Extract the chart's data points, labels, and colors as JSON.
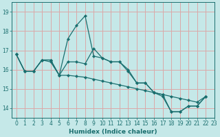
{
  "xlabel": "Humidex (Indice chaleur)",
  "ylabel": "",
  "bg_color": "#c5e8e8",
  "grid_color": "#dba8a8",
  "line_color": "#1a6e6e",
  "xlim": [
    -0.5,
    23
  ],
  "ylim": [
    13.5,
    19.5
  ],
  "yticks": [
    14,
    15,
    16,
    17,
    18,
    19
  ],
  "xticks": [
    0,
    1,
    2,
    3,
    4,
    5,
    6,
    7,
    8,
    9,
    10,
    11,
    12,
    13,
    14,
    15,
    16,
    17,
    18,
    19,
    20,
    21,
    22,
    23
  ],
  "series1_x": [
    0,
    1,
    2,
    3,
    4,
    5,
    6,
    7,
    8,
    9,
    10,
    11,
    12,
    13,
    14,
    15,
    16,
    17,
    18,
    19,
    20,
    21,
    22
  ],
  "series1_y": [
    16.8,
    15.9,
    15.9,
    16.5,
    16.5,
    15.7,
    17.6,
    18.3,
    18.8,
    16.7,
    16.6,
    16.4,
    16.4,
    15.9,
    15.3,
    15.3,
    14.8,
    14.6,
    13.8,
    13.8,
    14.1,
    14.1,
    14.6
  ],
  "series2_x": [
    0,
    1,
    2,
    3,
    4,
    5,
    6,
    7,
    8,
    9,
    10,
    11,
    12,
    13,
    14,
    15,
    16,
    17,
    18,
    19,
    20,
    21,
    22
  ],
  "series2_y": [
    16.8,
    15.9,
    15.9,
    16.5,
    16.5,
    15.7,
    16.4,
    16.4,
    16.3,
    17.1,
    16.6,
    16.4,
    16.4,
    16.0,
    15.3,
    15.3,
    14.8,
    14.7,
    13.8,
    13.8,
    14.1,
    14.1,
    14.6
  ],
  "series3_x": [
    0,
    1,
    2,
    3,
    4,
    5,
    6,
    7,
    8,
    9,
    10,
    11,
    12,
    13,
    14,
    15,
    16,
    17,
    18,
    19,
    20,
    21,
    22
  ],
  "series3_y": [
    16.8,
    15.9,
    15.9,
    16.5,
    16.4,
    15.7,
    15.7,
    15.65,
    15.6,
    15.5,
    15.4,
    15.3,
    15.2,
    15.1,
    15.0,
    14.9,
    14.8,
    14.7,
    14.6,
    14.5,
    14.4,
    14.3,
    14.6
  ]
}
